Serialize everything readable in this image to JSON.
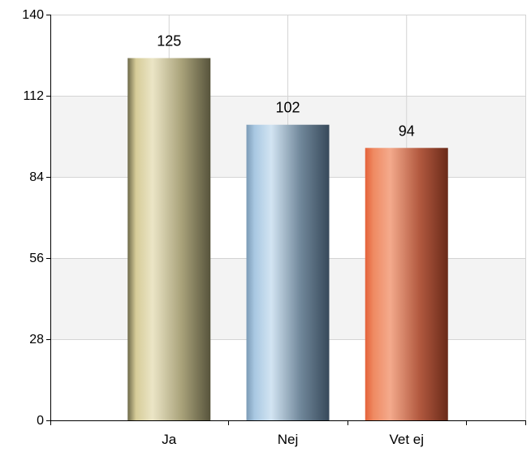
{
  "chart_data": {
    "type": "bar",
    "categories": [
      "Ja",
      "Nej",
      "Vet ej"
    ],
    "values": [
      125,
      102,
      94
    ],
    "data_labels": [
      "125",
      "102",
      "94"
    ],
    "y_ticks": [
      "0",
      "28",
      "56",
      "84",
      "112",
      "140"
    ],
    "ylim": [
      0,
      140
    ],
    "y_tick_step": 28,
    "grid": true,
    "colors": [
      [
        "#6e6a4a",
        "#d6cc98",
        "#ebe5c6",
        "#a9a27a",
        "#57543c"
      ],
      [
        "#7c9bb6",
        "#a9c8e2",
        "#d2e4f2",
        "#71889b",
        "#37495a"
      ],
      [
        "#e4623a",
        "#ef8a62",
        "#f4aa8c",
        "#b35a40",
        "#6a2a19"
      ]
    ],
    "band_colors": [
      "#ffffff",
      "#f3f3f3"
    ],
    "grid_color": "#d4d4d4",
    "axis_color": "#000000"
  }
}
